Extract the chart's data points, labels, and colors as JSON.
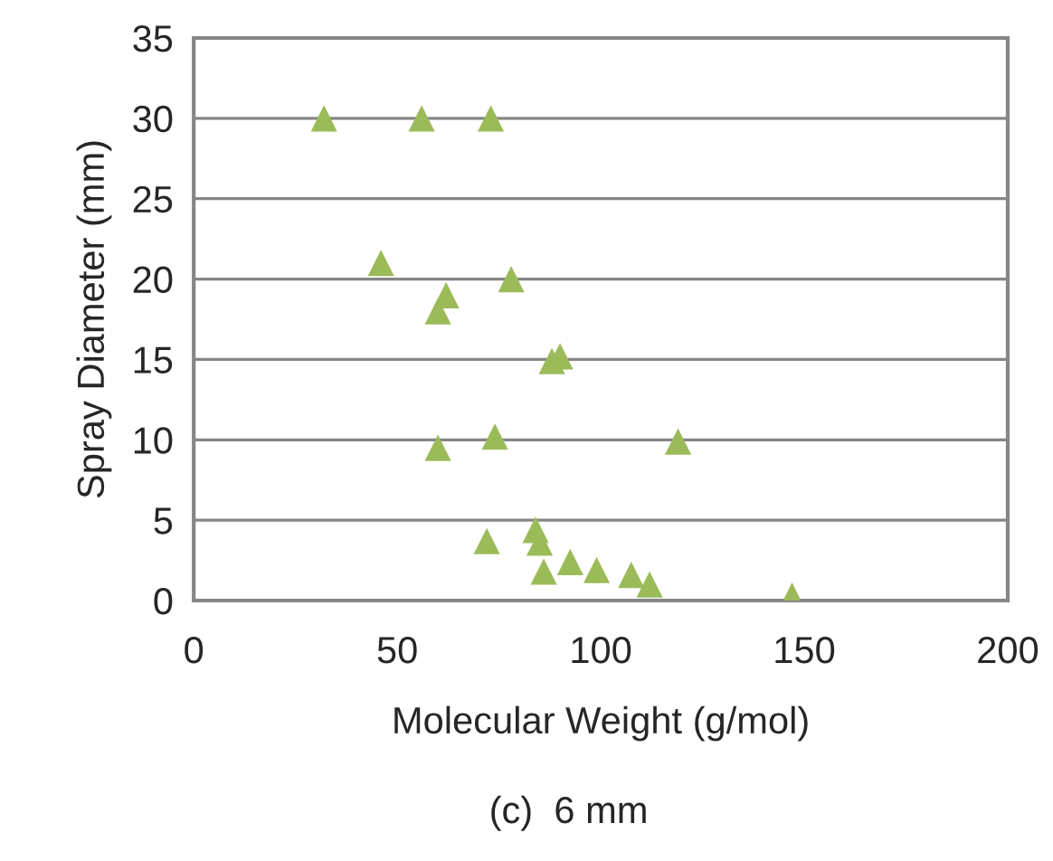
{
  "chart_data": {
    "type": "scatter",
    "xlabel": "Molecular Weight (g/mol)",
    "ylabel": "Spray Diameter (mm)",
    "annotations": [
      "(c)  6 mm"
    ],
    "series": [
      {
        "color": "#9bbb59",
        "marker": "triangle",
        "x": [
          32,
          56,
          73,
          46,
          62,
          60,
          78,
          90,
          88,
          74,
          60,
          119,
          72,
          84,
          85,
          86,
          92.5,
          99,
          107.5,
          112,
          147
        ],
        "values": [
          30,
          30,
          30,
          21,
          19,
          18,
          20,
          15.2,
          14.9,
          10.2,
          9.5,
          9.9,
          3.7,
          4.4,
          3.6,
          1.8,
          2.4,
          1.9,
          1.6,
          1,
          0.3
        ]
      }
    ],
    "xlim": [
      0,
      200
    ],
    "xticks": [
      0,
      50,
      100,
      150,
      200
    ],
    "ylim": [
      0,
      35
    ],
    "yticks": [
      0,
      5,
      10,
      15,
      20,
      25,
      30,
      35
    ],
    "grid": "y",
    "legend": false
  }
}
